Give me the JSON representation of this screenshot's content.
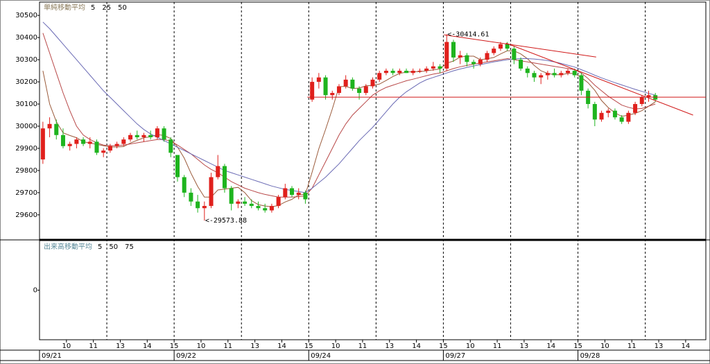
{
  "chart_data": {
    "type": "candlestick",
    "legend_title": "単純移動平均",
    "up_color": "#e0201c",
    "down_color": "#1eb41e",
    "x": [
      0,
      1,
      2,
      3,
      4,
      5,
      6,
      7,
      8,
      9,
      10,
      11,
      12,
      13,
      14,
      15,
      16,
      17,
      18,
      19,
      20,
      21,
      22,
      23,
      24,
      25,
      26,
      27,
      28,
      29,
      30,
      31,
      32,
      33,
      34,
      35,
      36,
      37,
      38,
      39,
      40,
      41,
      42,
      43,
      44,
      45,
      46,
      47,
      48,
      49,
      50,
      51,
      52,
      53,
      54,
      55,
      56,
      57,
      58,
      59,
      60,
      61,
      62,
      63,
      64,
      65,
      66,
      67,
      68,
      69,
      70,
      71,
      72,
      73,
      74,
      75,
      76,
      77,
      78,
      79,
      80,
      81,
      82,
      83,
      84,
      85,
      86,
      87,
      88,
      89,
      90,
      91
    ],
    "open": [
      29850,
      29990,
      30010,
      29960,
      29910,
      29920,
      29940,
      29920,
      29930,
      29880,
      29890,
      29910,
      29920,
      29940,
      29960,
      29950,
      29960,
      29950,
      29990,
      29940,
      29870,
      29770,
      29700,
      29660,
      29630,
      29640,
      29770,
      29820,
      29720,
      29650,
      29660,
      29650,
      29640,
      29630,
      29620,
      29640,
      29680,
      29720,
      29690,
      29700,
      30120,
      30200,
      30220,
      30140,
      30150,
      30180,
      30210,
      30170,
      30150,
      30180,
      30210,
      30240,
      30250,
      30240,
      30250,
      30240,
      30250,
      30250,
      30260,
      30270,
      30260,
      30380,
      30310,
      30320,
      30290,
      30280,
      30300,
      30330,
      30350,
      30370,
      30350,
      30300,
      30260,
      30240,
      30220,
      30230,
      30240,
      30230,
      30240,
      30250,
      30230,
      30160,
      30100,
      30030,
      30060,
      30070,
      30040,
      30020,
      30060,
      30100,
      30130,
      30140
    ],
    "high": [
      30020,
      30040,
      30030,
      29990,
      29930,
      29950,
      29950,
      29950,
      29940,
      29900,
      29920,
      29930,
      29950,
      29970,
      29980,
      29970,
      29980,
      30000,
      30000,
      29950,
      29870,
      29780,
      29720,
      29690,
      29660,
      29790,
      29870,
      29830,
      29730,
      29670,
      29680,
      29670,
      29660,
      29650,
      29650,
      29690,
      29740,
      29730,
      29720,
      29710,
      30220,
      30240,
      30230,
      30160,
      30190,
      30230,
      30220,
      30180,
      30190,
      30220,
      30250,
      30260,
      30260,
      30260,
      30260,
      30260,
      30260,
      30270,
      30290,
      30280,
      30414.61,
      30390,
      30340,
      30330,
      30300,
      30310,
      30340,
      30360,
      30380,
      30380,
      30360,
      30310,
      30270,
      30250,
      30240,
      30250,
      30260,
      30250,
      30260,
      30260,
      30240,
      30170,
      30110,
      30070,
      30080,
      30080,
      30050,
      30070,
      30110,
      30140,
      30160,
      30150
    ],
    "low": [
      29830,
      29950,
      29940,
      29900,
      29890,
      29900,
      29910,
      29900,
      29870,
      29860,
      29880,
      29900,
      29910,
      29930,
      29940,
      29930,
      29940,
      29940,
      29930,
      29860,
      29750,
      29680,
      29640,
      29610,
      29573.88,
      29630,
      29760,
      29700,
      29620,
      29630,
      29640,
      29630,
      29620,
      29610,
      29610,
      29630,
      29670,
      29680,
      29670,
      29650,
      30110,
      30170,
      30120,
      30120,
      30140,
      30170,
      30160,
      30120,
      30140,
      30170,
      30200,
      30230,
      30230,
      30230,
      30240,
      30230,
      30240,
      30240,
      30250,
      30240,
      30250,
      30290,
      30280,
      30270,
      30260,
      30270,
      30290,
      30320,
      30340,
      30340,
      30280,
      30250,
      30220,
      30200,
      30190,
      30210,
      30220,
      30220,
      30230,
      30220,
      30140,
      30080,
      30000,
      30020,
      30040,
      30030,
      30010,
      30010,
      30050,
      30090,
      30110,
      30110
    ],
    "close": [
      29990,
      30010,
      29960,
      29910,
      29920,
      29940,
      29920,
      29930,
      29880,
      29890,
      29910,
      29920,
      29940,
      29960,
      29950,
      29960,
      29950,
      29990,
      29940,
      29880,
      29770,
      29700,
      29660,
      29630,
      29640,
      29770,
      29820,
      29720,
      29650,
      29660,
      29650,
      29640,
      29630,
      29620,
      29640,
      29680,
      29720,
      29690,
      29700,
      29670,
      30200,
      30220,
      30140,
      30150,
      30180,
      30210,
      30170,
      30150,
      30180,
      30210,
      30240,
      30250,
      30240,
      30250,
      30240,
      30250,
      30250,
      30260,
      30270,
      30260,
      30380,
      30310,
      30320,
      30290,
      30280,
      30300,
      30330,
      30350,
      30370,
      30350,
      30300,
      30260,
      30240,
      30220,
      30230,
      30240,
      30230,
      30240,
      30250,
      30230,
      30160,
      30100,
      30030,
      30060,
      30070,
      30040,
      30020,
      30060,
      30100,
      30130,
      30140,
      30120
    ],
    "series": [
      {
        "name": "5",
        "color": "#9a5a3a",
        "values": [
          30250,
          30100,
          30020,
          29970,
          29958,
          29948,
          29930,
          29924,
          29918,
          29912,
          29906,
          29906,
          29908,
          29924,
          29936,
          29948,
          29952,
          29962,
          29958,
          29944,
          29906,
          29856,
          29788,
          29728,
          29680,
          29680,
          29712,
          29716,
          29720,
          29724,
          29700,
          29664,
          29646,
          29640,
          29636,
          29642,
          29658,
          29670,
          29690,
          29692,
          29792,
          29898,
          29986,
          30078,
          30178,
          30180,
          30170,
          30172,
          30182,
          30184,
          30190,
          30206,
          30224,
          30238,
          30244,
          30246,
          30246,
          30250,
          30254,
          30258,
          30284,
          30294,
          30312,
          30316,
          30316,
          30300,
          30304,
          30310,
          30326,
          30340,
          30340,
          30326,
          30304,
          30274,
          30250,
          30238,
          30232,
          30232,
          30238,
          30238,
          30220,
          30196,
          30162,
          30116,
          30084,
          30060,
          30044,
          30050,
          30058,
          30070,
          30090,
          30110
        ]
      },
      {
        "name": "25",
        "color": "#b84848",
        "values": [
          30420,
          30330,
          30240,
          30150,
          30070,
          30000,
          29960,
          29940,
          29925,
          29915,
          29912,
          29912,
          29915,
          29920,
          29925,
          29930,
          29935,
          29940,
          29940,
          29932,
          29915,
          29895,
          29875,
          29850,
          29825,
          29805,
          29790,
          29770,
          29750,
          29735,
          29720,
          29710,
          29700,
          29692,
          29686,
          29680,
          29680,
          29680,
          29682,
          29685,
          29720,
          29780,
          29840,
          29900,
          29960,
          30010,
          30050,
          30080,
          30110,
          30140,
          30160,
          30175,
          30185,
          30195,
          30205,
          30212,
          30220,
          30228,
          30235,
          30240,
          30250,
          30260,
          30268,
          30274,
          30280,
          30285,
          30290,
          30295,
          30300,
          30305,
          30300,
          30295,
          30290,
          30285,
          30280,
          30275,
          30270,
          30265,
          30260,
          30255,
          30240,
          30215,
          30185,
          30160,
          30135,
          30115,
          30095,
          30085,
          30078,
          30080,
          30090,
          30100
        ]
      },
      {
        "name": "50",
        "color": "#6a6ab4",
        "values": [
          30470,
          30440,
          30405,
          30370,
          30335,
          30300,
          30265,
          30230,
          30195,
          30160,
          30130,
          30100,
          30070,
          30040,
          30010,
          29985,
          29965,
          29950,
          29935,
          29920,
          29905,
          29890,
          29875,
          29860,
          29845,
          29830,
          29815,
          29800,
          29790,
          29780,
          29770,
          29760,
          29750,
          29740,
          29730,
          29722,
          29715,
          29710,
          29705,
          29700,
          29720,
          29745,
          29770,
          29800,
          29830,
          29865,
          29900,
          29935,
          29965,
          29995,
          30030,
          30065,
          30100,
          30130,
          30155,
          30175,
          30195,
          30210,
          30220,
          30230,
          30240,
          30250,
          30258,
          30265,
          30272,
          30278,
          30284,
          30290,
          30295,
          30300,
          30303,
          30305,
          30305,
          30303,
          30300,
          30296,
          30290,
          30283,
          30275,
          30267,
          30255,
          30243,
          30230,
          30218,
          30207,
          30196,
          30186,
          30176,
          30166,
          30157,
          30148,
          30140
        ]
      }
    ],
    "xlim": [
      -0.5,
      98.5
    ],
    "ylim": [
      29490,
      30560
    ],
    "yticks": [
      29600,
      29700,
      29800,
      29900,
      30000,
      30100,
      30200,
      30300,
      30400,
      30500
    ],
    "xticks": [
      {
        "value": 3.5,
        "label": "10"
      },
      {
        "value": 7.5,
        "label": "11"
      },
      {
        "value": 11.5,
        "label": "13"
      },
      {
        "value": 15.5,
        "label": "14"
      },
      {
        "value": 19.5,
        "label": "15"
      },
      {
        "value": 23.5,
        "label": "10"
      },
      {
        "value": 27.5,
        "label": "11"
      },
      {
        "value": 31.5,
        "label": "13"
      },
      {
        "value": 35.5,
        "label": "14"
      },
      {
        "value": 39.5,
        "label": "15"
      },
      {
        "value": 43.5,
        "label": "10"
      },
      {
        "value": 47.5,
        "label": "11"
      },
      {
        "value": 51.5,
        "label": "13"
      },
      {
        "value": 55.5,
        "label": "14"
      },
      {
        "value": 59.5,
        "label": "15"
      },
      {
        "value": 63.5,
        "label": "10"
      },
      {
        "value": 67.5,
        "label": "11"
      },
      {
        "value": 71.5,
        "label": "13"
      },
      {
        "value": 75.5,
        "label": "14"
      },
      {
        "value": 79.5,
        "label": "15"
      },
      {
        "value": 83.5,
        "label": "10"
      },
      {
        "value": 87.5,
        "label": "11"
      },
      {
        "value": 91.5,
        "label": "13"
      },
      {
        "value": 95.5,
        "label": "14"
      }
    ],
    "dates": [
      {
        "value": -0.5,
        "label": "09/21"
      },
      {
        "value": 19.5,
        "label": "09/22"
      },
      {
        "value": 39.5,
        "label": "09/24"
      },
      {
        "value": 59.5,
        "label": "09/27"
      },
      {
        "value": 79.5,
        "label": "09/28"
      }
    ],
    "session_lines": [
      9.5,
      19.5,
      29.5,
      39.5,
      49.5,
      59.5,
      69.5,
      79.5,
      89.5
    ],
    "annotations": [
      {
        "label": "<-30414.61",
        "value": 30414.61,
        "x": 60,
        "color": "#e0201c"
      },
      {
        "label": "<-29573.88",
        "value": 29573.88,
        "x": 24,
        "color": "#1eb41e"
      }
    ],
    "trendlines": [
      {
        "color": "#d01818",
        "x": [
          59.6,
          82.2
        ],
        "y": [
          30412,
          30312
        ]
      },
      {
        "color": "#d01818",
        "x": [
          68.8,
          96.6
        ],
        "y": [
          30375,
          30050
        ]
      },
      {
        "color": "#d01818",
        "x": [
          39.3,
          98.5
        ],
        "y": [
          30131,
          30131
        ]
      }
    ],
    "volume": {
      "legend_title": "出来高移動平均",
      "series": [
        {
          "name": "5",
          "color": "#b8a040"
        },
        {
          "name": "50",
          "color": "#6a6ab4"
        },
        {
          "name": "75",
          "color": "#50a050"
        }
      ],
      "ylim": [
        -1,
        1
      ],
      "yticks": [
        0
      ]
    }
  }
}
